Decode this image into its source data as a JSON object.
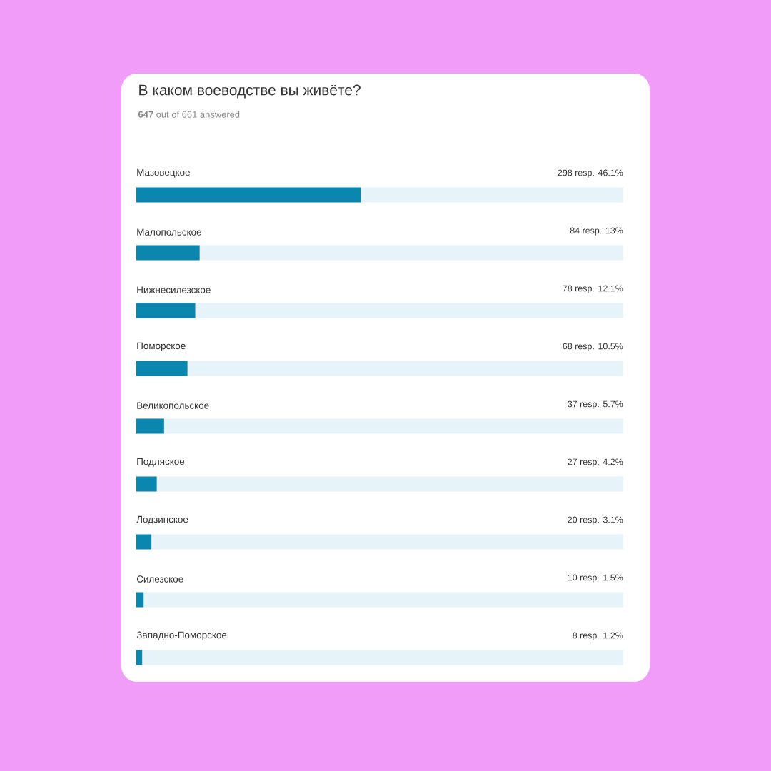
{
  "chart_data": {
    "type": "bar",
    "orientation": "horizontal",
    "title": "В каком воеводстве вы живёте?",
    "subtitle": "**647** out of 661 answered",
    "categories": [
      "Мазовецкое",
      "Малопольское",
      "Нижнесилезское",
      "Поморское",
      "Великопольское",
      "Подляское",
      "Лодзинское",
      "Силезское",
      "Западно-Поморское"
    ],
    "values": [
      46.1,
      13,
      12.1,
      10.5,
      5.7,
      4.2,
      3.1,
      1.5,
      1.2
    ],
    "value_labels": [
      "298 resp.  46.1%",
      "84 resp.  13%",
      "78 resp.  12.1%",
      "68 resp.  10.5%",
      "37 resp.  5.7%",
      "27 resp.  4.2%",
      "20 resp.  3.1%",
      "10 resp.  1.5%",
      "8 resp.  1.2%"
    ],
    "color": "#0b86ae",
    "xlim": [
      0,
      100
    ]
  }
}
